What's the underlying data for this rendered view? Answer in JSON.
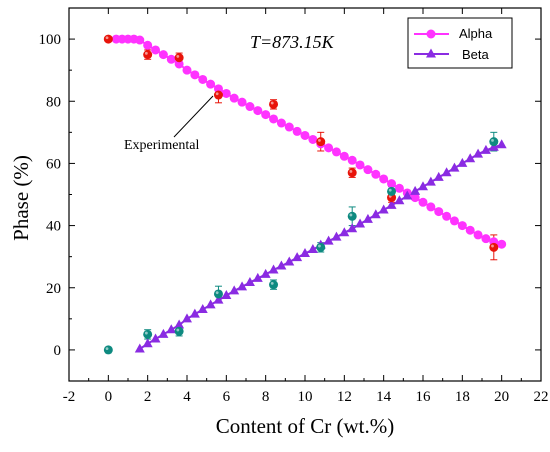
{
  "chart_data": {
    "type": "scatter",
    "annotation_temperature": "T=873.15K",
    "annotation_label": "Experimental",
    "xlabel": "Content of Cr (wt.%)",
    "ylabel": "Phase (%)",
    "xlim": [
      -2,
      22
    ],
    "ylim": [
      -10,
      110
    ],
    "xticks": [
      "-2",
      "0",
      "2",
      "4",
      "6",
      "8",
      "10",
      "12",
      "14",
      "16",
      "18",
      "20",
      "22"
    ],
    "yticks": [
      "0",
      "20",
      "40",
      "60",
      "80",
      "100"
    ],
    "legend_position": "top-right",
    "series": [
      {
        "name": "Alpha",
        "kind": "calculated",
        "color": "#ff33ff",
        "marker": "circle",
        "x": [
          0.4,
          0.7,
          1.0,
          1.3,
          1.6,
          2.0,
          2.4,
          2.8,
          3.2,
          3.6,
          4.0,
          4.4,
          4.8,
          5.2,
          5.6,
          6.0,
          6.4,
          6.8,
          7.2,
          7.6,
          8.0,
          8.4,
          8.8,
          9.2,
          9.6,
          10.0,
          10.4,
          10.8,
          11.2,
          11.6,
          12.0,
          12.4,
          12.8,
          13.2,
          13.6,
          14.0,
          14.4,
          14.8,
          15.2,
          15.6,
          16.0,
          16.4,
          16.8,
          17.2,
          17.6,
          18.0,
          18.4,
          18.8,
          19.2,
          19.6,
          20.0
        ],
        "y": [
          100.0,
          100.0,
          100.0,
          100.0,
          99.7,
          98.0,
          96.5,
          95.0,
          93.5,
          92.0,
          90.0,
          88.5,
          87.0,
          85.5,
          84.0,
          82.5,
          81.0,
          79.7,
          78.3,
          77.0,
          75.7,
          74.3,
          73.0,
          71.7,
          70.3,
          69.0,
          67.7,
          66.3,
          65.0,
          63.7,
          62.3,
          61.0,
          59.5,
          58.0,
          56.5,
          55.0,
          53.5,
          52.0,
          50.5,
          49.0,
          47.5,
          46.0,
          44.5,
          43.0,
          41.5,
          40.0,
          38.5,
          37.0,
          35.8,
          34.8,
          34.0
        ]
      },
      {
        "name": "Beta",
        "kind": "calculated",
        "color": "#8a2be2",
        "marker": "triangle",
        "x": [
          1.6,
          2.0,
          2.4,
          2.8,
          3.2,
          3.6,
          4.0,
          4.4,
          4.8,
          5.2,
          5.6,
          6.0,
          6.4,
          6.8,
          7.2,
          7.6,
          8.0,
          8.4,
          8.8,
          9.2,
          9.6,
          10.0,
          10.4,
          10.8,
          11.2,
          11.6,
          12.0,
          12.4,
          12.8,
          13.2,
          13.6,
          14.0,
          14.4,
          14.8,
          15.2,
          15.6,
          16.0,
          16.4,
          16.8,
          17.2,
          17.6,
          18.0,
          18.4,
          18.8,
          19.2,
          19.6,
          20.0
        ],
        "y": [
          0.3,
          2.0,
          3.5,
          5.0,
          6.5,
          8.0,
          10.0,
          11.5,
          13.0,
          14.5,
          16.0,
          17.5,
          19.0,
          20.3,
          21.7,
          23.0,
          24.3,
          25.7,
          27.0,
          28.3,
          29.7,
          31.0,
          32.3,
          33.7,
          35.0,
          36.3,
          37.7,
          39.0,
          40.5,
          42.0,
          43.5,
          45.0,
          46.5,
          48.0,
          49.5,
          51.0,
          52.5,
          54.0,
          55.5,
          57.0,
          58.5,
          60.0,
          61.5,
          63.0,
          64.2,
          65.2,
          66.0
        ]
      },
      {
        "name": "Alpha experimental",
        "kind": "experimental",
        "color": "#e8140a",
        "marker": "circle",
        "x": [
          0,
          2,
          3.6,
          5.6,
          8.4,
          10.8,
          12.4,
          14.4,
          19.6
        ],
        "y": [
          100,
          95,
          94,
          82,
          79,
          67,
          57,
          49,
          33
        ],
        "err": [
          0.5,
          1.5,
          1.5,
          2.5,
          1.5,
          3,
          1.5,
          1.5,
          4
        ]
      },
      {
        "name": "Beta experimental",
        "kind": "experimental",
        "color": "#0e8a80",
        "marker": "circle",
        "x": [
          0,
          2,
          3.6,
          5.6,
          8.4,
          10.8,
          12.4,
          14.4,
          19.6
        ],
        "y": [
          0,
          5,
          6,
          18,
          21,
          33,
          43,
          51,
          67
        ],
        "err": [
          0.5,
          1.5,
          1.5,
          2.5,
          1.5,
          1.5,
          3,
          1.5,
          3
        ]
      }
    ]
  }
}
